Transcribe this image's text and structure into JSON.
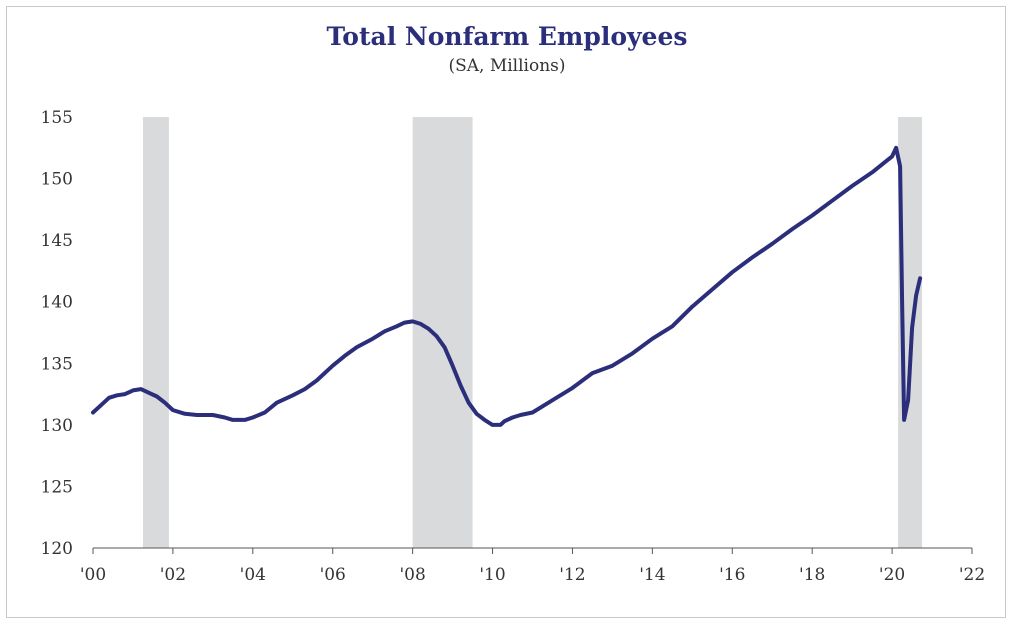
{
  "chart_data": {
    "type": "line",
    "title": "Total Nonfarm Employees",
    "subtitle": "(SA, Millions)",
    "xlabel": "",
    "ylabel": "",
    "xlim": [
      2000,
      2022
    ],
    "ylim": [
      120,
      155
    ],
    "yticks": [
      120,
      125,
      130,
      135,
      140,
      145,
      150,
      155
    ],
    "xticks": [
      {
        "value": 2000,
        "label": "'00"
      },
      {
        "value": 2002,
        "label": "'02"
      },
      {
        "value": 2004,
        "label": "'04"
      },
      {
        "value": 2006,
        "label": "'06"
      },
      {
        "value": 2008,
        "label": "'08"
      },
      {
        "value": 2010,
        "label": "'10"
      },
      {
        "value": 2012,
        "label": "'12"
      },
      {
        "value": 2014,
        "label": "'14"
      },
      {
        "value": 2016,
        "label": "'16"
      },
      {
        "value": 2018,
        "label": "'18"
      },
      {
        "value": 2020,
        "label": "'20"
      },
      {
        "value": 2022,
        "label": "'22"
      }
    ],
    "recessions": [
      {
        "start": 2001.25,
        "end": 2001.9
      },
      {
        "start": 2008.0,
        "end": 2009.5
      },
      {
        "start": 2020.15,
        "end": 2020.75
      }
    ],
    "grid": false,
    "legend": "none",
    "line_color": "#2b2e7a",
    "recession_color": "#d9dadb",
    "series": [
      {
        "x": [
          2000.0,
          2000.2,
          2000.4,
          2000.6,
          2000.8,
          2001.0,
          2001.2,
          2001.4,
          2001.6,
          2001.8,
          2002.0,
          2002.3,
          2002.6,
          2003.0,
          2003.3,
          2003.5,
          2003.8,
          2004.0,
          2004.3,
          2004.6,
          2005.0,
          2005.3,
          2005.6,
          2006.0,
          2006.3,
          2006.6,
          2007.0,
          2007.3,
          2007.6,
          2007.8,
          2008.0,
          2008.2,
          2008.4,
          2008.6,
          2008.8,
          2009.0,
          2009.2,
          2009.4,
          2009.6,
          2009.8,
          2010.0,
          2010.2,
          2010.3,
          2010.5,
          2010.7,
          2011.0,
          2011.5,
          2012.0,
          2012.5,
          2013.0,
          2013.5,
          2014.0,
          2014.5,
          2015.0,
          2015.5,
          2016.0,
          2016.5,
          2017.0,
          2017.5,
          2018.0,
          2018.5,
          2019.0,
          2019.5,
          2020.0,
          2020.1,
          2020.2,
          2020.25,
          2020.3,
          2020.4,
          2020.5,
          2020.6,
          2020.7
        ],
        "values": [
          131.0,
          131.6,
          132.2,
          132.4,
          132.5,
          132.8,
          132.9,
          132.6,
          132.3,
          131.8,
          131.2,
          130.9,
          130.8,
          130.8,
          130.6,
          130.4,
          130.4,
          130.6,
          131.0,
          131.8,
          132.4,
          132.9,
          133.6,
          134.8,
          135.6,
          136.3,
          137.0,
          137.6,
          138.0,
          138.3,
          138.4,
          138.2,
          137.8,
          137.2,
          136.3,
          134.8,
          133.2,
          131.8,
          130.9,
          130.4,
          130.0,
          130.0,
          130.3,
          130.6,
          130.8,
          131.0,
          132.0,
          133.0,
          134.2,
          134.8,
          135.8,
          137.0,
          138.0,
          139.6,
          141.0,
          142.4,
          143.6,
          144.7,
          145.9,
          147.0,
          148.2,
          149.4,
          150.5,
          151.8,
          152.5,
          151.0,
          140.0,
          130.4,
          132.0,
          137.9,
          140.5,
          141.9
        ]
      }
    ]
  }
}
